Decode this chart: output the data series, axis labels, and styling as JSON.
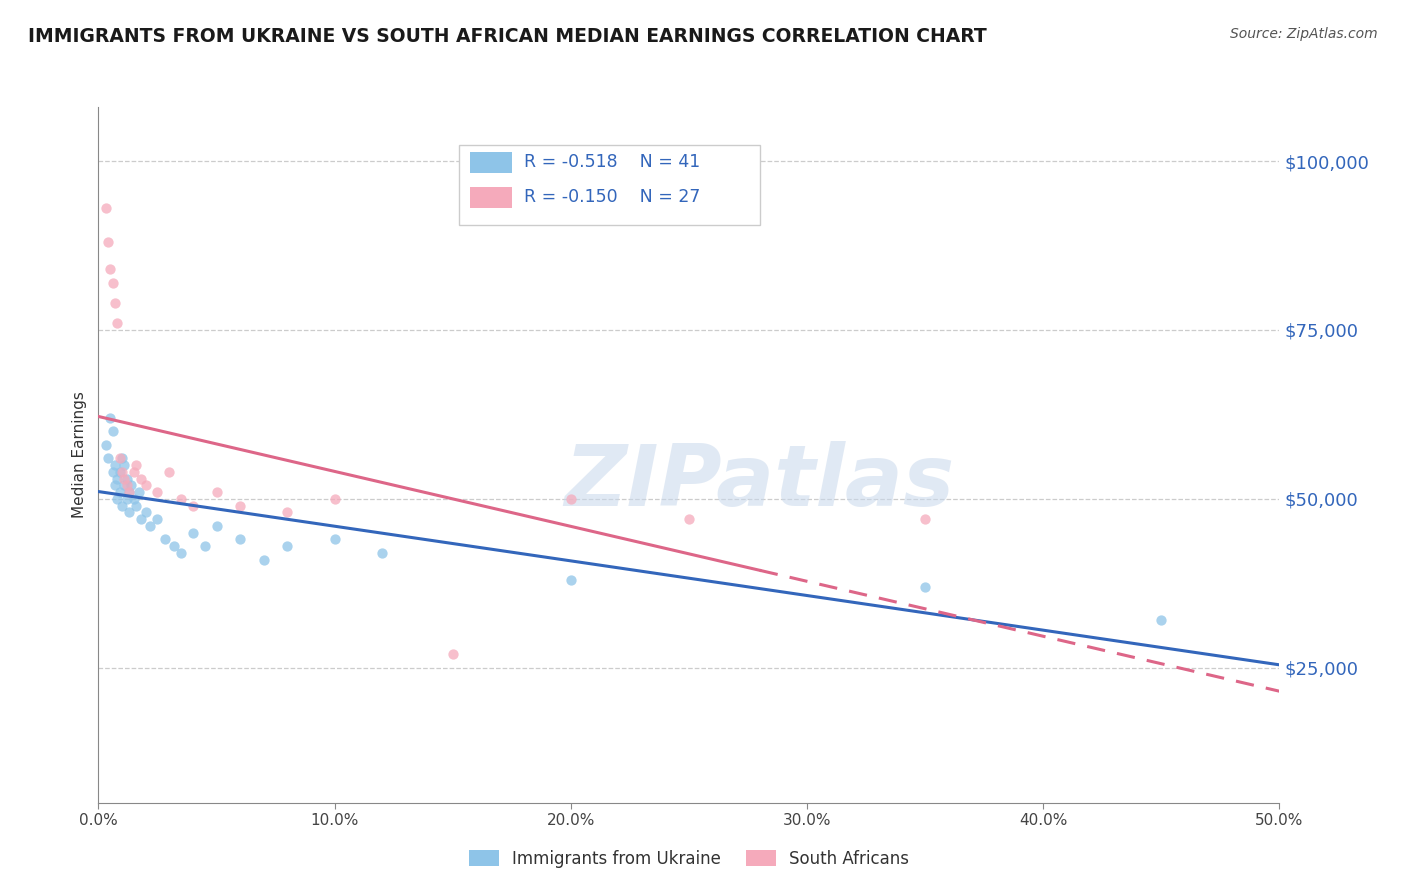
{
  "title": "IMMIGRANTS FROM UKRAINE VS SOUTH AFRICAN MEDIAN EARNINGS CORRELATION CHART",
  "source": "Source: ZipAtlas.com",
  "ylabel": "Median Earnings",
  "yticks": [
    25000,
    50000,
    75000,
    100000
  ],
  "ytick_labels": [
    "$25,000",
    "$50,000",
    "$75,000",
    "$100,000"
  ],
  "xlim": [
    0.0,
    0.5
  ],
  "ylim": [
    5000,
    108000
  ],
  "legend_r1": "R = -0.518",
  "legend_n1": "N = 41",
  "legend_r2": "R = -0.150",
  "legend_n2": "N = 27",
  "legend_label1": "Immigrants from Ukraine",
  "legend_label2": "South Africans",
  "color_ukraine": "#8EC4E8",
  "color_ukraine_line": "#3366BB",
  "color_sa": "#F5AABB",
  "color_sa_line": "#DD6688",
  "watermark_text": "ZIPatlas",
  "ukraine_x": [
    0.003,
    0.004,
    0.005,
    0.006,
    0.006,
    0.007,
    0.007,
    0.008,
    0.008,
    0.009,
    0.009,
    0.01,
    0.01,
    0.011,
    0.011,
    0.012,
    0.012,
    0.013,
    0.013,
    0.014,
    0.015,
    0.016,
    0.017,
    0.018,
    0.02,
    0.022,
    0.025,
    0.028,
    0.032,
    0.035,
    0.04,
    0.045,
    0.05,
    0.06,
    0.07,
    0.08,
    0.1,
    0.12,
    0.2,
    0.35,
    0.45
  ],
  "ukraine_y": [
    58000,
    56000,
    62000,
    54000,
    60000,
    55000,
    52000,
    53000,
    50000,
    54000,
    51000,
    56000,
    49000,
    55000,
    52000,
    53000,
    50000,
    51000,
    48000,
    52000,
    50000,
    49000,
    51000,
    47000,
    48000,
    46000,
    47000,
    44000,
    43000,
    42000,
    45000,
    43000,
    46000,
    44000,
    41000,
    43000,
    44000,
    42000,
    38000,
    37000,
    32000
  ],
  "sa_x": [
    0.003,
    0.004,
    0.005,
    0.006,
    0.007,
    0.008,
    0.009,
    0.01,
    0.011,
    0.012,
    0.013,
    0.015,
    0.016,
    0.018,
    0.02,
    0.025,
    0.03,
    0.035,
    0.04,
    0.05,
    0.06,
    0.08,
    0.1,
    0.15,
    0.2,
    0.25,
    0.35
  ],
  "sa_y": [
    93000,
    88000,
    84000,
    82000,
    79000,
    76000,
    56000,
    54000,
    53000,
    52000,
    51000,
    54000,
    55000,
    53000,
    52000,
    51000,
    54000,
    50000,
    49000,
    51000,
    49000,
    48000,
    50000,
    27000,
    50000,
    47000,
    47000
  ],
  "xtick_positions": [
    0.0,
    0.1,
    0.2,
    0.3,
    0.4,
    0.5
  ],
  "xtick_labels": [
    "0.0%",
    "10.0%",
    "20.0%",
    "30.0%",
    "40.0%",
    "50.0%"
  ]
}
